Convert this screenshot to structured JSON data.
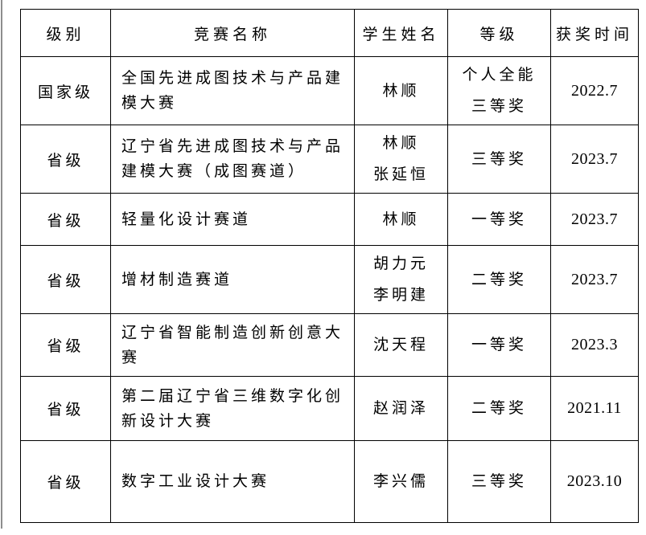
{
  "page": {
    "background_color": "#ffffff",
    "edge_line_color": "#8d8d8d",
    "table_border_color": "#000000"
  },
  "table": {
    "columns": [
      {
        "key": "level",
        "label": "级别"
      },
      {
        "key": "competition",
        "label": "竞赛名称"
      },
      {
        "key": "students",
        "label": "学生姓名"
      },
      {
        "key": "award",
        "label": "等级"
      },
      {
        "key": "date",
        "label": "获奖时间"
      }
    ],
    "rows": [
      {
        "level": "国家级",
        "competition": "全国先进成图技术与产品建模大赛",
        "students": [
          "林顺"
        ],
        "award": [
          "个人全能",
          "三等奖"
        ],
        "date": "2022.7"
      },
      {
        "level": "省级",
        "competition": "辽宁省先进成图技术与产品建模大赛（成图赛道）",
        "students": [
          "林顺",
          "张延恒"
        ],
        "award": [
          "三等奖"
        ],
        "date": "2023.7"
      },
      {
        "level": "省级",
        "competition": "轻量化设计赛道",
        "students": [
          "林顺"
        ],
        "award": [
          "一等奖"
        ],
        "date": "2023.7"
      },
      {
        "level": "省级",
        "competition": "增材制造赛道",
        "students": [
          "胡力元",
          "李明建"
        ],
        "award": [
          "二等奖"
        ],
        "date": "2023.7"
      },
      {
        "level": "省级",
        "competition": "辽宁省智能制造创新创意大赛",
        "students": [
          "沈天程"
        ],
        "award": [
          "一等奖"
        ],
        "date": "2023.3"
      },
      {
        "level": "省级",
        "competition": "第二届辽宁省三维数字化创新设计大赛",
        "students": [
          "赵润泽"
        ],
        "award": [
          "二等奖"
        ],
        "date": "2021.11"
      },
      {
        "level": "省级",
        "competition": "数字工业设计大赛",
        "students": [
          "李兴儒"
        ],
        "award": [
          "三等奖"
        ],
        "date": "2023.10"
      }
    ]
  }
}
